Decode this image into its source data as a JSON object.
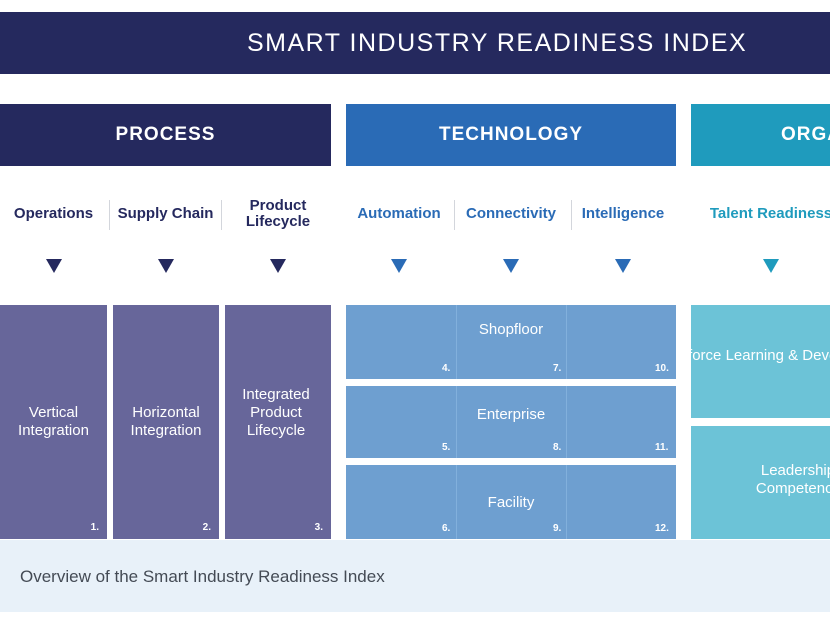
{
  "title": "SMART INDUSTRY READINESS INDEX",
  "pillars": {
    "process": "PROCESS",
    "technology": "TECHNOLOGY",
    "organization": "ORGA"
  },
  "dimensions": {
    "operations": "Operations",
    "supply_chain": "Supply Chain",
    "product_lifecycle": "Product Lifecycle",
    "automation": "Automation",
    "connectivity": "Connectivity",
    "intelligence": "Intelligence",
    "talent_readiness": "Talent Readiness"
  },
  "process_blocks": [
    {
      "label": "Vertical Integration",
      "number": "1."
    },
    {
      "label": "Horizontal Integration",
      "number": "2."
    },
    {
      "label": "Integrated Product Lifecycle",
      "number": "3."
    }
  ],
  "technology_rows": [
    {
      "label": "Shopfloor",
      "numbers": [
        "4.",
        "7.",
        "10."
      ]
    },
    {
      "label": "Enterprise",
      "numbers": [
        "5.",
        "8.",
        "11."
      ]
    },
    {
      "label": "Facility",
      "numbers": [
        "6.",
        "9.",
        "12."
      ]
    }
  ],
  "organization_blocks": [
    {
      "label": "Workforce Learning & Development"
    },
    {
      "label": "Leadership Competency"
    }
  ],
  "caption": "Overview of the Smart Industry Readiness Index",
  "colors": {
    "navy": "#25295e",
    "technology_blue": "#2a6bb6",
    "organization_teal": "#1f9bbd",
    "process_block": "#67669a",
    "technology_block": "#6e9fd0",
    "organization_block": "#6cc3d7",
    "caption_bg": "#e8f1f9"
  }
}
